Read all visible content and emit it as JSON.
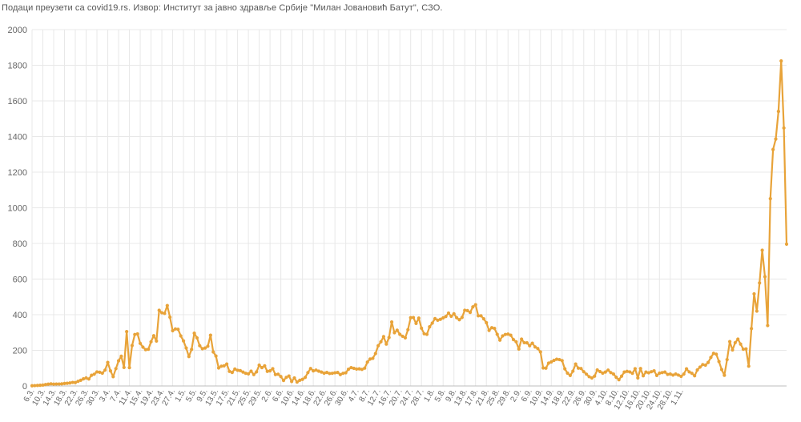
{
  "source_note": "Подаци преузети са covid19.rs. Извор: Институт за јавно здравље Србије \"Милан Јовановић Батут\", СЗО.",
  "chart_data": {
    "type": "line",
    "title": "",
    "xlabel": "",
    "ylabel": "",
    "ylim": [
      0,
      2000
    ],
    "y_ticks": [
      0,
      200,
      400,
      600,
      800,
      1000,
      1200,
      1400,
      1600,
      1800,
      2000
    ],
    "grid": true,
    "line_color": "#e8a339",
    "x_tick_labels": [
      "6.3.",
      "10.3.",
      "14.3.",
      "18.3.",
      "22.3.",
      "26.3.",
      "30.3.",
      "3.4.",
      "7.4.",
      "11.4.",
      "15.4.",
      "19.4.",
      "23.4.",
      "27.4.",
      "1.5.",
      "5.5.",
      "9.5.",
      "13.5.",
      "17.5.",
      "21.5.",
      "25.5.",
      "29.5.",
      "2.6.",
      "6.6.",
      "10.6.",
      "14.6.",
      "18.6.",
      "22.6.",
      "26.6.",
      "30.6.",
      "4.7.",
      "8.7.",
      "12.7.",
      "16.7.",
      "20.7.",
      "24.7.",
      "28.7.",
      "1.8.",
      "5.8.",
      "9.8.",
      "13.8.",
      "17.8.",
      "21.8.",
      "25.8.",
      "29.8.",
      "2.9.",
      "6.9.",
      "10.9.",
      "14.9.",
      "18.9.",
      "22.9.",
      "26.9.",
      "30.9.",
      "4.10.",
      "8.10.",
      "12.10.",
      "16.10.",
      "20.10.",
      "24.10.",
      "28.10.",
      "1.11."
    ],
    "values": [
      1,
      2,
      3,
      4,
      5,
      8,
      10,
      12,
      10,
      11,
      11,
      12,
      14,
      15,
      17,
      20,
      19,
      26,
      32,
      40,
      45,
      39,
      60,
      66,
      79,
      77,
      72,
      89,
      132,
      85,
      52,
      97,
      141,
      167,
      104,
      305,
      103,
      227,
      289,
      292,
      239,
      218,
      204,
      206,
      248,
      282,
      252,
      425,
      411,
      407,
      451,
      386,
      310,
      320,
      318,
      281,
      253,
      213,
      165,
      205,
      296,
      270,
      226,
      209,
      213,
      223,
      285,
      191,
      168,
      101,
      111,
      113,
      123,
      82,
      76,
      95,
      88,
      86,
      78,
      71,
      68,
      83,
      64,
      79,
      117,
      103,
      113,
      82,
      85,
      97,
      64,
      66,
      53,
      31,
      48,
      56,
      25,
      45,
      22,
      32,
      37,
      48,
      75,
      98,
      85,
      89,
      83,
      78,
      72,
      76,
      70,
      71,
      74,
      76,
      64,
      71,
      74,
      94,
      103,
      99,
      95,
      96,
      93,
      100,
      134,
      151,
      155,
      182,
      226,
      248,
      277,
      235,
      272,
      359,
      299,
      313,
      290,
      279,
      270,
      316,
      383,
      384,
      351,
      381,
      324,
      293,
      290,
      332,
      353,
      378,
      369,
      374,
      382,
      390,
      409,
      391,
      405,
      383,
      372,
      385,
      425,
      423,
      413,
      444,
      456,
      394,
      394,
      377,
      355,
      312,
      327,
      323,
      290,
      257,
      281,
      289,
      291,
      285,
      260,
      248,
      207,
      263,
      243,
      242,
      226,
      240,
      219,
      210,
      191,
      101,
      100,
      128,
      135,
      144,
      150,
      148,
      142,
      96,
      72,
      59,
      83,
      123,
      100,
      98,
      80,
      66,
      52,
      45,
      55,
      90,
      81,
      72,
      78,
      89,
      75,
      67,
      49,
      35,
      55,
      78,
      82,
      79,
      71,
      97,
      45,
      98,
      57,
      78,
      74,
      80,
      85,
      59,
      72,
      75,
      78,
      65,
      67,
      61,
      67,
      61,
      54,
      67,
      96,
      79,
      71,
      57,
      90,
      106,
      120,
      117,
      132,
      160,
      183,
      178,
      137,
      92,
      60,
      148,
      249,
      202,
      243,
      263,
      235,
      206,
      208,
      111,
      322,
      517,
      420,
      578,
      762,
      613,
      339,
      1051,
      1327,
      1386,
      1541,
      1824,
      1448,
      796
    ]
  }
}
